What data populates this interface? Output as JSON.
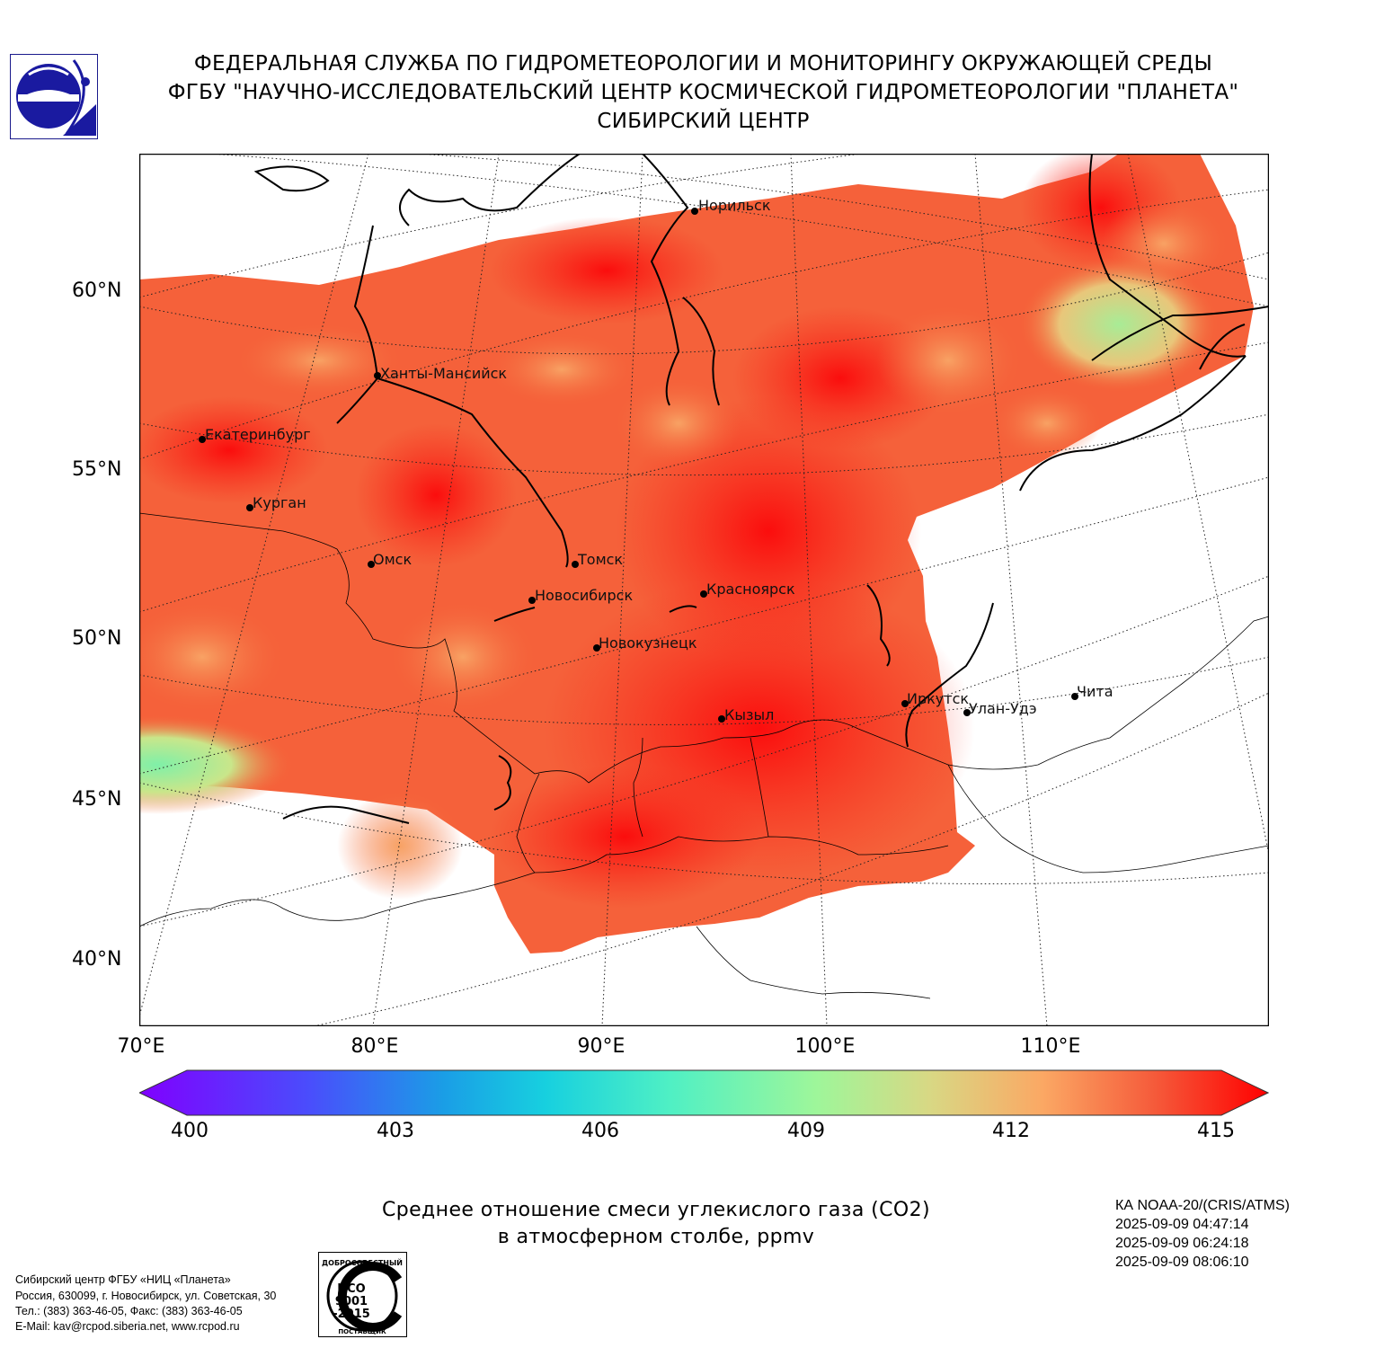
{
  "header": {
    "line1": "ФЕДЕРАЛЬНАЯ СЛУЖБА ПО ГИДРОМЕТЕОРОЛОГИИ И МОНИТОРИНГУ ОКРУЖАЮЩЕЙ СРЕДЫ",
    "line2": "ФГБУ \"НАУЧНО-ИССЛЕДОВАТЕЛЬСКИЙ ЦЕНТР КОСМИЧЕСКОЙ ГИДРОМЕТЕОРОЛОГИИ \"ПЛАНЕТА\"",
    "line3": "СИБИРСКИЙ ЦЕНТР"
  },
  "map": {
    "lat_labels": [
      "60°N",
      "55°N",
      "50°N",
      "45°N",
      "40°N"
    ],
    "lon_labels": [
      "70°E",
      "80°E",
      "90°E",
      "100°E",
      "110°E"
    ],
    "cities": [
      {
        "name": "Норильск"
      },
      {
        "name": "Ханты-Мансийск"
      },
      {
        "name": "Екатеринбург"
      },
      {
        "name": "Курган"
      },
      {
        "name": "Омск"
      },
      {
        "name": "Томск"
      },
      {
        "name": "Новосибирск"
      },
      {
        "name": "Красноярск"
      },
      {
        "name": "Новокузнецк"
      },
      {
        "name": "Кызыл"
      },
      {
        "name": "Иркутск"
      },
      {
        "name": "Улан-Удэ"
      },
      {
        "name": "Чита"
      }
    ]
  },
  "colorbar": {
    "ticks": [
      "400",
      "403",
      "406",
      "409",
      "412",
      "415"
    ],
    "min": 400,
    "max": 415
  },
  "caption": {
    "line1": "Среднее отношение смеси углекислого газа (CO2)",
    "line2": "в атмосферном столбе, ppmv"
  },
  "satellite": {
    "name": "КА NOAA-20/(CRIS/ATMS)",
    "times": [
      "2025-09-09 04:47:14",
      "2025-09-09 06:24:18",
      "2025-09-09 08:06:10"
    ]
  },
  "contacts": [
    "Сибирский центр ФГБУ «НИЦ «Планета»",
    "Россия, 630099, г. Новосибирск, ул. Советская, 30",
    "Тел.: (383) 363-46-05, Факс: (383) 363-46-05",
    "E-Mail: kav@rcpod.siberia.net, www.rcpod.ru"
  ],
  "iso_badge": {
    "top_text": "ДОБРОСОВЕСТНЫЙ",
    "line1": "ИСО",
    "line2": "9001",
    "line3": "-2015",
    "bottom_text": "ПОСТАВЩИК"
  }
}
